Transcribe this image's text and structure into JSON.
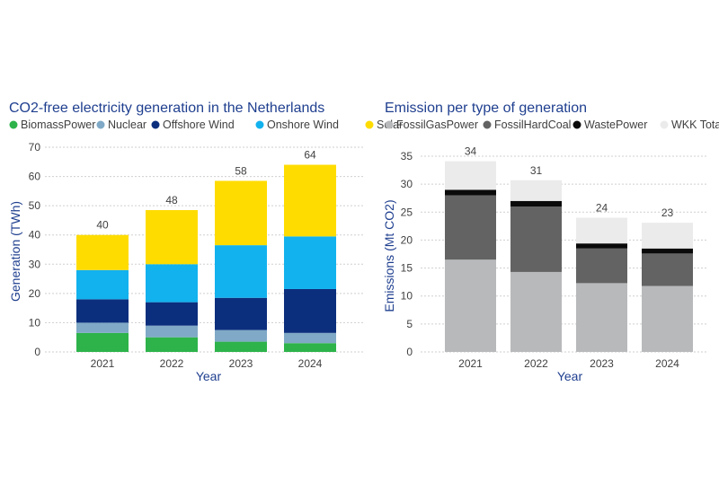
{
  "chart_data": [
    {
      "type": "bar",
      "stacked": true,
      "title": "CO2-free electricity generation in the Netherlands",
      "xlabel": "Year",
      "ylabel": "Generation (TWh)",
      "ylim": [
        0,
        70
      ],
      "yticks": [
        0,
        10,
        20,
        30,
        40,
        50,
        60,
        70
      ],
      "categories": [
        "2021",
        "2022",
        "2023",
        "2024"
      ],
      "series": [
        {
          "name": "BiomassPower",
          "color": "#2db34a",
          "values": [
            6.5,
            5,
            3.5,
            3
          ]
        },
        {
          "name": "Nuclear",
          "color": "#7fa9c6",
          "values": [
            3.5,
            4,
            4,
            3.5
          ]
        },
        {
          "name": "Offshore Wind",
          "color": "#0c2f7d",
          "values": [
            8,
            8,
            11,
            15
          ]
        },
        {
          "name": "Onshore Wind",
          "color": "#12b2ee",
          "values": [
            10,
            13,
            18,
            18
          ]
        },
        {
          "name": "Solar",
          "color": "#ffdc00",
          "values": [
            12,
            18.5,
            22,
            24.5
          ]
        }
      ],
      "totals": [
        "40",
        "48",
        "58",
        "64"
      ],
      "grid": true,
      "legend": "top"
    },
    {
      "type": "bar",
      "stacked": true,
      "title": "Emission per type of generation",
      "xlabel": "Year",
      "ylabel": "Emissions (Mt CO2)",
      "ylim": [
        0,
        35
      ],
      "yticks": [
        0,
        5,
        10,
        15,
        20,
        25,
        30,
        35
      ],
      "categories": [
        "2021",
        "2022",
        "2023",
        "2024"
      ],
      "series": [
        {
          "name": "FossilGasPower",
          "color": "#b8b9bb",
          "values": [
            16.5,
            14.3,
            12.3,
            11.8
          ]
        },
        {
          "name": "FossilHardCoal",
          "color": "#636363",
          "values": [
            11.5,
            11.7,
            6.2,
            5.8
          ]
        },
        {
          "name": "WastePower",
          "color": "#0a0a0a",
          "values": [
            1,
            1,
            0.9,
            0.9
          ]
        },
        {
          "name": "WKK Total",
          "color": "#ebebeb",
          "values": [
            5.1,
            3.7,
            4.6,
            4.6
          ]
        }
      ],
      "totals": [
        "34",
        "31",
        "24",
        "23"
      ],
      "grid": true,
      "legend": "top"
    }
  ]
}
